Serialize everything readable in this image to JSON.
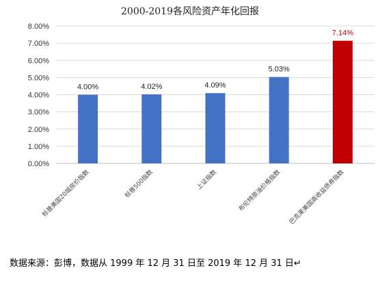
{
  "chart_data": {
    "type": "bar",
    "title": "2000-2019各风险资产年化回报",
    "xlabel": "",
    "ylabel": "",
    "categories": [
      "标普美国20城房价指数",
      "标普500指数",
      "上证指数",
      "布伦特原油价格指数",
      "巴克莱美国高收益债券指数"
    ],
    "values": [
      4.0,
      4.02,
      4.09,
      5.03,
      7.14
    ],
    "data_labels": [
      "4.00%",
      "4.02%",
      "4.09%",
      "5.03%",
      "7.14%"
    ],
    "ylim": [
      0,
      8
    ],
    "yticks": [
      "0.00%",
      "1.00%",
      "2.00%",
      "3.00%",
      "4.00%",
      "5.00%",
      "6.00%",
      "7.00%",
      "8.00%"
    ],
    "grid": true,
    "legend": "none",
    "colors": {
      "default_bar": "#4472C4",
      "highlight_bar": "#C00000",
      "highlight_label": "#C00000",
      "label": "#222222",
      "grid": "#D9D9D9"
    },
    "highlight_index": 4
  },
  "footer": {
    "source": "数据来源：彭博，数据从 1999 年 12 月 31 日至 2019 年 12 月 31 日↵"
  }
}
